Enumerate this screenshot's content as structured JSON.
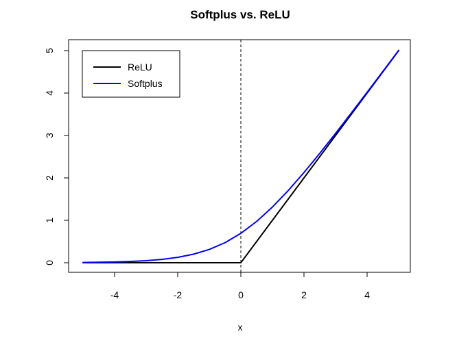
{
  "chart_data": {
    "type": "line",
    "title": "Softplus vs. ReLU",
    "xlabel": "x",
    "ylabel": "",
    "xlim": [
      -5,
      5
    ],
    "ylim": [
      0,
      5
    ],
    "x_ticks": [
      -4,
      -2,
      0,
      2,
      4
    ],
    "y_ticks": [
      0,
      1,
      2,
      3,
      4,
      5
    ],
    "x_tick_labels": [
      "-4",
      "-2",
      "0",
      "2",
      "4"
    ],
    "y_tick_labels": [
      "0",
      "1",
      "2",
      "3",
      "4",
      "5"
    ],
    "grid": false,
    "legend": {
      "position": "top-left",
      "entries": [
        "ReLU",
        "Softplus"
      ]
    },
    "series": [
      {
        "name": "ReLU",
        "color": "#000000",
        "x": [
          -5,
          -4,
          -3,
          -2,
          -1,
          0,
          1,
          2,
          3,
          4,
          5
        ],
        "y": [
          0,
          0,
          0,
          0,
          0,
          0,
          1,
          2,
          3,
          4,
          5
        ]
      },
      {
        "name": "Softplus",
        "color": "#0000ff",
        "x": [
          -5,
          -4.5,
          -4,
          -3.5,
          -3,
          -2.5,
          -2,
          -1.5,
          -1,
          -0.5,
          0,
          0.5,
          1,
          1.5,
          2,
          2.5,
          3,
          3.5,
          4,
          4.5,
          5
        ],
        "y": [
          0.0067,
          0.0111,
          0.0181,
          0.0298,
          0.0486,
          0.0789,
          0.1269,
          0.2014,
          0.3133,
          0.4741,
          0.6931,
          0.9741,
          1.3133,
          1.7014,
          2.1269,
          2.5789,
          3.0486,
          3.5298,
          4.0181,
          4.5111,
          5.0067
        ]
      }
    ],
    "annotations": [
      {
        "type": "vertical-line",
        "x": 0,
        "style": "dashed",
        "color": "#000000"
      }
    ]
  }
}
